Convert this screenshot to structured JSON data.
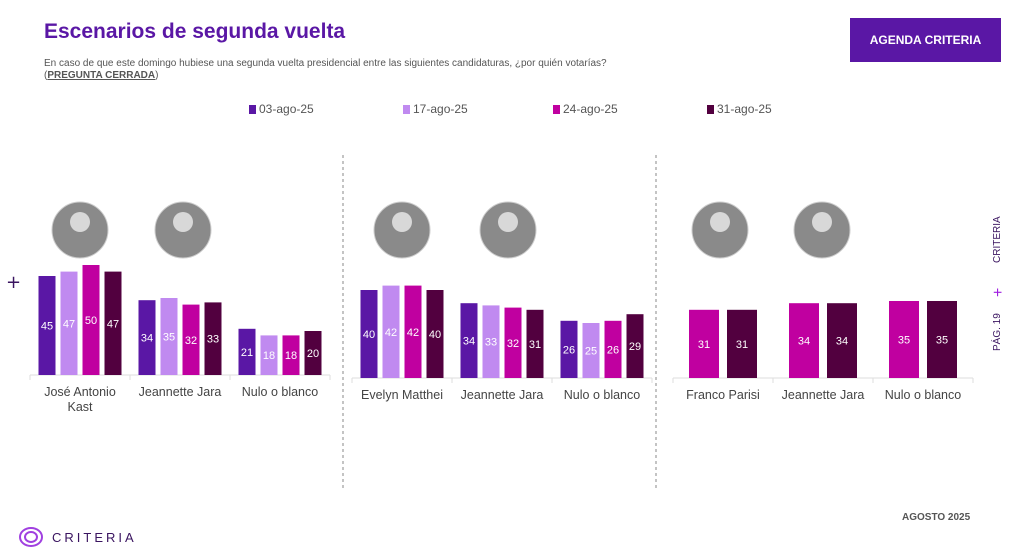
{
  "header": {
    "title": "Escenarios de segunda vuelta",
    "subtitle": "En caso de que este domingo hubiese una segunda vuelta presidencial entre las siguientes candidaturas, ¿por quién votarías?",
    "note_open": "(",
    "note": "PREGUNTA CERRADA",
    "note_close": ")",
    "button": "AGENDA CRITERIA"
  },
  "side": {
    "brand": "CRITERIA",
    "plus": "+",
    "page": "PÁG. 19"
  },
  "footer": {
    "date": "AGOSTO 2025",
    "logo": "CRITERIA"
  },
  "plus_mark": "+",
  "colors": {
    "03-ago-25": "#5a17a5",
    "17-ago-25": "#c08af0",
    "24-ago-25": "#c000a0",
    "31-ago-25": "#52003f"
  },
  "chart_data": [
    {
      "type": "bar",
      "legend": [
        "03-ago-25",
        "17-ago-25",
        "24-ago-25",
        "31-ago-25"
      ],
      "categories": [
        "José Antonio Kast",
        "Jeannette Jara",
        "Nulo o blanco"
      ],
      "series": [
        {
          "name": "03-ago-25",
          "values": [
            45,
            34,
            21
          ]
        },
        {
          "name": "17-ago-25",
          "values": [
            47,
            35,
            18
          ]
        },
        {
          "name": "24-ago-25",
          "values": [
            50,
            32,
            18
          ]
        },
        {
          "name": "31-ago-25",
          "values": [
            47,
            33,
            20
          ]
        }
      ]
    },
    {
      "type": "bar",
      "categories": [
        "Evelyn Matthei",
        "Jeannette Jara",
        "Nulo o blanco"
      ],
      "series": [
        {
          "name": "03-ago-25",
          "values": [
            40,
            34,
            26
          ]
        },
        {
          "name": "17-ago-25",
          "values": [
            42,
            33,
            25
          ]
        },
        {
          "name": "24-ago-25",
          "values": [
            42,
            32,
            26
          ]
        },
        {
          "name": "31-ago-25",
          "values": [
            40,
            31,
            29
          ]
        }
      ]
    },
    {
      "type": "bar",
      "categories": [
        "Franco Parisi",
        "Jeannette Jara",
        "Nulo o blanco"
      ],
      "series": [
        {
          "name": "24-ago-25",
          "values": [
            31,
            34,
            35
          ]
        },
        {
          "name": "31-ago-25",
          "values": [
            31,
            34,
            35
          ]
        }
      ]
    }
  ]
}
